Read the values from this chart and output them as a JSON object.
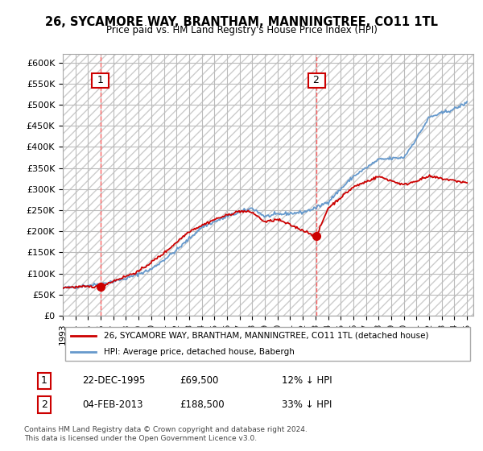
{
  "title": "26, SYCAMORE WAY, BRANTHAM, MANNINGTREE, CO11 1TL",
  "subtitle": "Price paid vs. HM Land Registry's House Price Index (HPI)",
  "ylabel_ticks": [
    "£0",
    "£50K",
    "£100K",
    "£150K",
    "£200K",
    "£250K",
    "£300K",
    "£350K",
    "£400K",
    "£450K",
    "£500K",
    "£550K",
    "£600K"
  ],
  "ytick_vals": [
    0,
    50000,
    100000,
    150000,
    200000,
    250000,
    300000,
    350000,
    400000,
    450000,
    500000,
    550000,
    600000
  ],
  "xlim_start": 1993.0,
  "xlim_end": 2025.5,
  "ylim_min": 0,
  "ylim_max": 620000,
  "sale1_year": 1995.97,
  "sale1_price": 69500,
  "sale2_year": 2013.09,
  "sale2_price": 188500,
  "legend_line1": "26, SYCAMORE WAY, BRANTHAM, MANNINGTREE, CO11 1TL (detached house)",
  "legend_line2": "HPI: Average price, detached house, Babergh",
  "table_row1": [
    "1",
    "22-DEC-1995",
    "£69,500",
    "12% ↓ HPI"
  ],
  "table_row2": [
    "2",
    "04-FEB-2013",
    "£188,500",
    "33% ↓ HPI"
  ],
  "footnote": "Contains HM Land Registry data © Crown copyright and database right 2024.\nThis data is licensed under the Open Government Licence v3.0.",
  "line_color_red": "#cc0000",
  "line_color_blue": "#6699cc",
  "dot_color_red": "#cc0000",
  "background_hatch_color": "#dddddd",
  "grid_color": "#bbbbbb",
  "vline_color": "#ff6666"
}
